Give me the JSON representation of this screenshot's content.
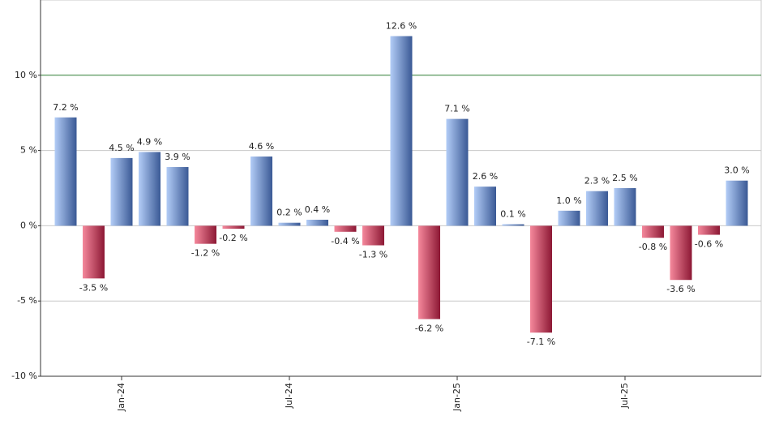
{
  "chart_data": {
    "type": "bar",
    "categories": [
      null,
      null,
      "Jan-24",
      null,
      null,
      null,
      null,
      null,
      "Jul-24",
      null,
      null,
      null,
      null,
      null,
      "Jan-25",
      null,
      null,
      null,
      null,
      null,
      "Jul-25",
      null,
      null,
      null,
      null
    ],
    "values": [
      7.2,
      -3.5,
      4.5,
      4.9,
      3.9,
      -1.2,
      -0.2,
      4.6,
      0.2,
      0.4,
      -0.4,
      -1.3,
      12.6,
      -6.2,
      7.1,
      2.6,
      0.1,
      -7.1,
      1.0,
      2.3,
      2.5,
      -0.8,
      -3.6,
      -0.6,
      3.0
    ],
    "value_labels": [
      "7.2 %",
      "-3.5 %",
      "4.5 %",
      "4.9 %",
      "3.9 %",
      "-1.2 %",
      "-0.2 %",
      "4.6 %",
      "0.2 %",
      "0.4 %",
      "-0.4 %",
      "-1.3 %",
      "12.6 %",
      "-6.2 %",
      "7.1 %",
      "2.6 %",
      "0.1 %",
      "-7.1 %",
      "1.0 %",
      "2.3 %",
      "2.5 %",
      "-0.8 %",
      "-3.6 %",
      "-0.6 %",
      "3.0 %"
    ],
    "color": [
      "#b3cdf7",
      "#3a5995"
    ],
    "negative_color": [
      "#f5889c",
      "#8c1834"
    ],
    "ylim": [
      -10,
      15
    ],
    "yticks": [
      {
        "value": -10,
        "label": "-10 %"
      },
      {
        "value": -5,
        "label": "-5 %"
      },
      {
        "value": 0,
        "label": "0 %"
      },
      {
        "value": 5,
        "label": "5 %"
      },
      {
        "value": 10,
        "label": "10 %"
      }
    ],
    "grid": true,
    "grid_color": "#c8c8c8",
    "highlight_grid": {
      "value": 10,
      "color": "#2e7d32"
    }
  }
}
